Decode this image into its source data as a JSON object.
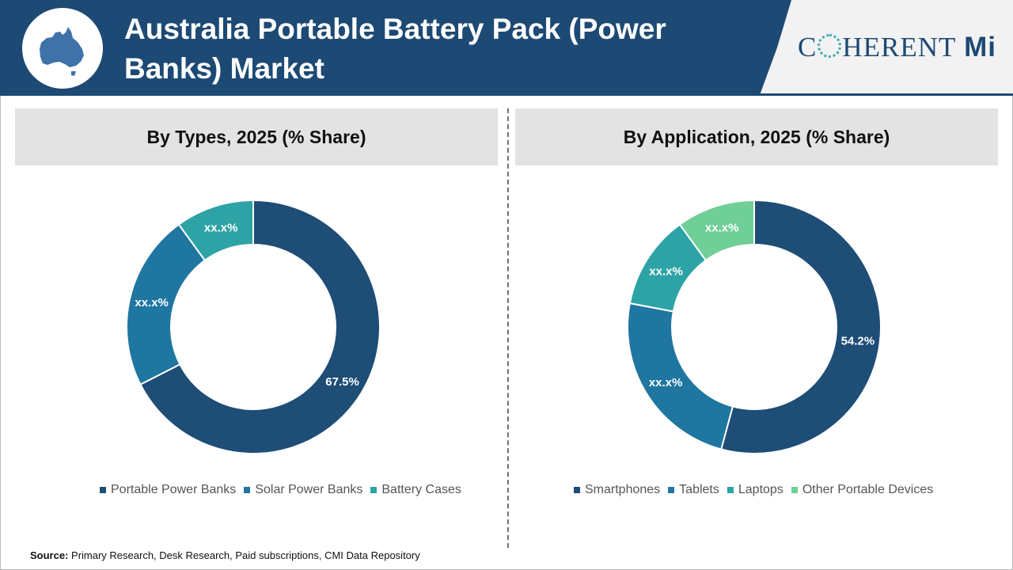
{
  "header": {
    "title": "Australia Portable Battery Pack (Power Banks) Market",
    "brand": {
      "c": "C",
      "herent": "HERENT",
      "mi": "Mi"
    },
    "map_icon": "australia-map-icon"
  },
  "colors": {
    "header_bg": "#1d4a74",
    "dark_navy": "#1e4d76",
    "blue": "#1f76a0",
    "teal": "#2ea3a6",
    "light_green": "#6fcf97"
  },
  "chart_data": [
    {
      "type": "pie",
      "donut": true,
      "title": "By Types, 2025 (% Share)",
      "categories": [
        "Portable Power Banks",
        "Solar Power Banks",
        "Battery Cases"
      ],
      "values": [
        67.5,
        22.5,
        10.0
      ],
      "labels": [
        "67.5%",
        "xx.x%",
        "xx.x%"
      ],
      "colors": [
        "#1e4d76",
        "#1f76a0",
        "#2ea3a6"
      ],
      "legend": "bottom"
    },
    {
      "type": "pie",
      "donut": true,
      "title": "By Application, 2025 (% Share)",
      "categories": [
        "Smartphones",
        "Tablets",
        "Laptops",
        "Other Portable Devices"
      ],
      "values": [
        54.2,
        23.8,
        12.0,
        10.0
      ],
      "labels": [
        "54.2%",
        "xx.x%",
        "xx.x%",
        "xx.x%"
      ],
      "colors": [
        "#1e4d76",
        "#1f76a0",
        "#2ea3a6",
        "#6fcf97"
      ],
      "legend": "bottom"
    }
  ],
  "source": {
    "label": "Source:",
    "text": "Primary Research, Desk Research, Paid subscriptions, CMI Data Repository"
  }
}
